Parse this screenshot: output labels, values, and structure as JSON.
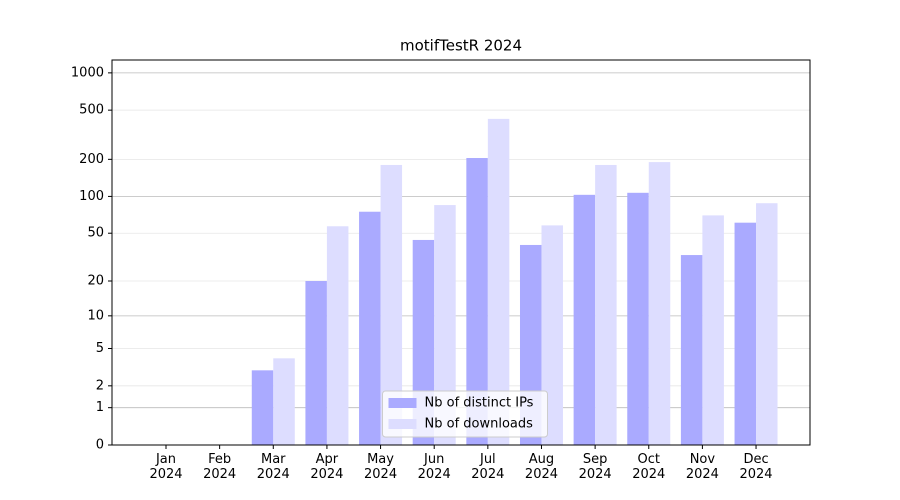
{
  "chart_data": {
    "type": "bar",
    "title": "motifTestR 2024",
    "categories": [
      "Jan\n2024",
      "Feb\n2024",
      "Mar\n2024",
      "Apr\n2024",
      "May\n2024",
      "Jun\n2024",
      "Jul\n2024",
      "Aug\n2024",
      "Sep\n2024",
      "Oct\n2024",
      "Nov\n2024",
      "Dec\n2024"
    ],
    "series": [
      {
        "name": "Nb of distinct IPs",
        "color": "#aaaaff",
        "values": [
          0,
          0,
          3,
          20,
          75,
          44,
          205,
          40,
          103,
          107,
          33,
          61
        ]
      },
      {
        "name": "Nb of downloads",
        "color": "#ddddff",
        "values": [
          0,
          0,
          4,
          57,
          180,
          85,
          425,
          58,
          180,
          190,
          70,
          88
        ]
      }
    ],
    "yscale": "log1p",
    "ylim": [
      0,
      1270
    ],
    "yticks": [
      0,
      1,
      2,
      5,
      10,
      20,
      50,
      100,
      200,
      500,
      1000
    ],
    "grid": true,
    "legend": "lower center"
  }
}
